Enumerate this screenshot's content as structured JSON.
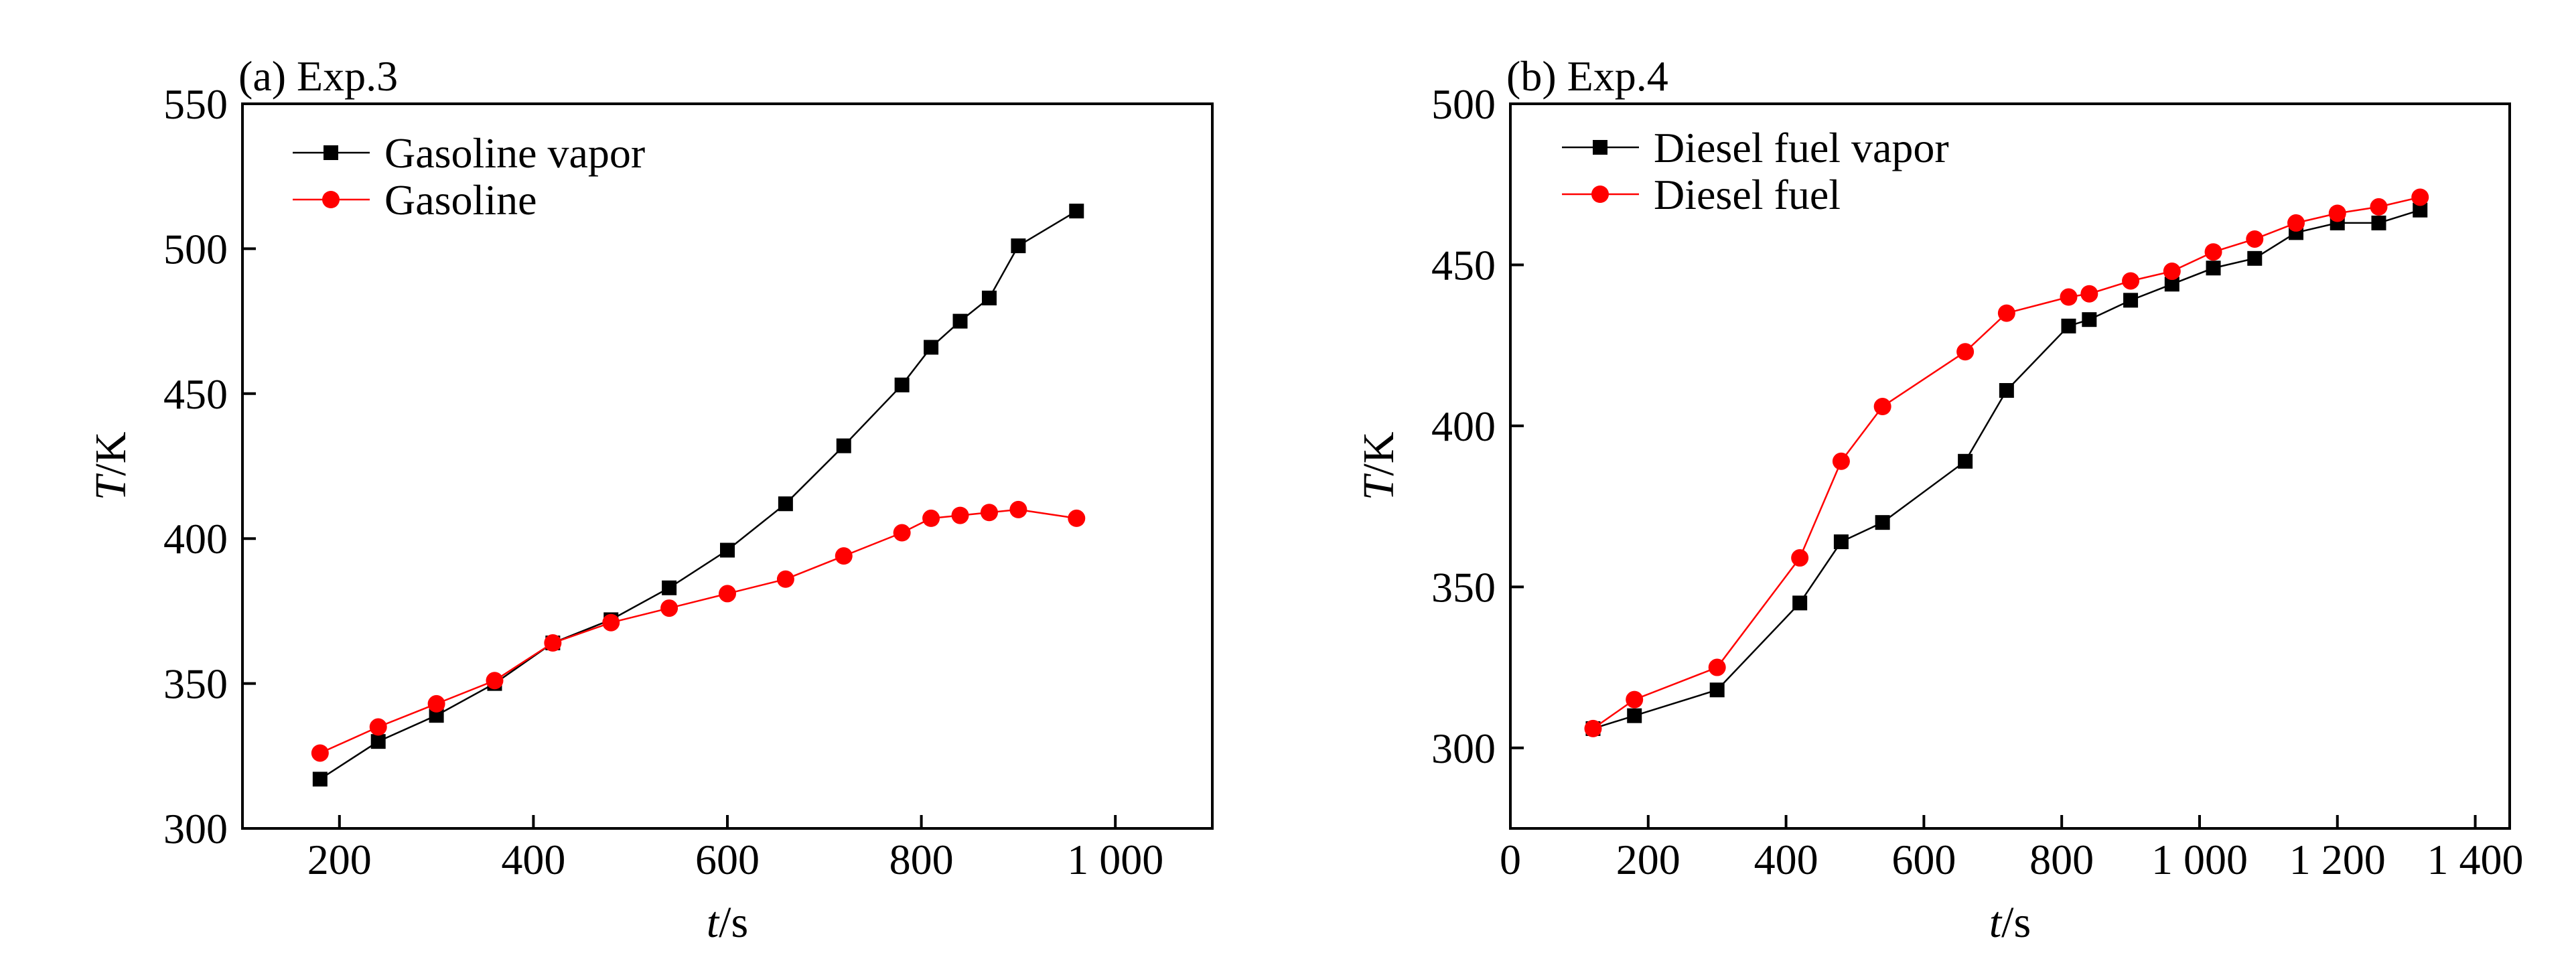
{
  "chart_data": [
    {
      "type": "line",
      "panel_label": "(a) Exp.3",
      "xlabel": {
        "var": "t",
        "unit": "/s"
      },
      "ylabel": {
        "var": "T",
        "unit": "/K"
      },
      "xlim": [
        100,
        1100
      ],
      "ylim": [
        300,
        550
      ],
      "xticks": [
        200,
        400,
        600,
        800,
        1000
      ],
      "xtick_labels": [
        "200",
        "400",
        "600",
        "800",
        "1 000"
      ],
      "yticks": [
        300,
        350,
        400,
        450,
        500,
        550
      ],
      "ytick_labels": [
        "300",
        "350",
        "400",
        "450",
        "500",
        "550"
      ],
      "legend_position": "top-left",
      "series": [
        {
          "name": "Gasoline vapor",
          "marker": "square",
          "color": "#000000",
          "points": [
            [
              180,
              317
            ],
            [
              240,
              330
            ],
            [
              300,
              339
            ],
            [
              360,
              350
            ],
            [
              420,
              364
            ],
            [
              480,
              372
            ],
            [
              540,
              383
            ],
            [
              600,
              396
            ],
            [
              660,
              412
            ],
            [
              720,
              432
            ],
            [
              780,
              453
            ],
            [
              810,
              466
            ],
            [
              840,
              475
            ],
            [
              870,
              483
            ],
            [
              900,
              501
            ],
            [
              960,
              513
            ]
          ]
        },
        {
          "name": "Gasoline",
          "marker": "circle",
          "color": "#ff0000",
          "points": [
            [
              180,
              326
            ],
            [
              240,
              335
            ],
            [
              300,
              343
            ],
            [
              360,
              351
            ],
            [
              420,
              364
            ],
            [
              480,
              371
            ],
            [
              540,
              376
            ],
            [
              600,
              381
            ],
            [
              660,
              386
            ],
            [
              720,
              394
            ],
            [
              780,
              402
            ],
            [
              810,
              407
            ],
            [
              840,
              408
            ],
            [
              870,
              409
            ],
            [
              900,
              410
            ],
            [
              960,
              407
            ]
          ]
        }
      ]
    },
    {
      "type": "line",
      "panel_label": "(b) Exp.4",
      "xlabel": {
        "var": "t",
        "unit": "/s"
      },
      "ylabel": {
        "var": "T",
        "unit": "/K"
      },
      "xlim": [
        0,
        1450
      ],
      "ylim": [
        275,
        500
      ],
      "xticks": [
        0,
        200,
        400,
        600,
        800,
        1000,
        1200,
        1400
      ],
      "xtick_labels": [
        "0",
        "200",
        "400",
        "600",
        "800",
        "1 000",
        "1 200",
        "1 400"
      ],
      "yticks": [
        300,
        350,
        400,
        450,
        500
      ],
      "ytick_labels": [
        "300",
        "350",
        "400",
        "450",
        "500"
      ],
      "legend_position": "top-left",
      "series": [
        {
          "name": "Diesel fuel vapor",
          "marker": "square",
          "color": "#000000",
          "points": [
            [
              120,
              306
            ],
            [
              180,
              310
            ],
            [
              300,
              318
            ],
            [
              420,
              345
            ],
            [
              480,
              364
            ],
            [
              540,
              370
            ],
            [
              660,
              389
            ],
            [
              720,
              411
            ],
            [
              810,
              431
            ],
            [
              840,
              433
            ],
            [
              900,
              439
            ],
            [
              960,
              444
            ],
            [
              1020,
              449
            ],
            [
              1080,
              452
            ],
            [
              1140,
              460
            ],
            [
              1200,
              463
            ],
            [
              1260,
              463
            ],
            [
              1320,
              467
            ]
          ]
        },
        {
          "name": "Diesel fuel",
          "marker": "circle",
          "color": "#ff0000",
          "points": [
            [
              120,
              306
            ],
            [
              180,
              315
            ],
            [
              300,
              325
            ],
            [
              420,
              359
            ],
            [
              480,
              389
            ],
            [
              540,
              406
            ],
            [
              660,
              423
            ],
            [
              720,
              435
            ],
            [
              810,
              440
            ],
            [
              840,
              441
            ],
            [
              900,
              445
            ],
            [
              960,
              448
            ],
            [
              1020,
              454
            ],
            [
              1080,
              458
            ],
            [
              1140,
              463
            ],
            [
              1200,
              466
            ],
            [
              1260,
              468
            ],
            [
              1320,
              471
            ]
          ]
        }
      ]
    }
  ]
}
